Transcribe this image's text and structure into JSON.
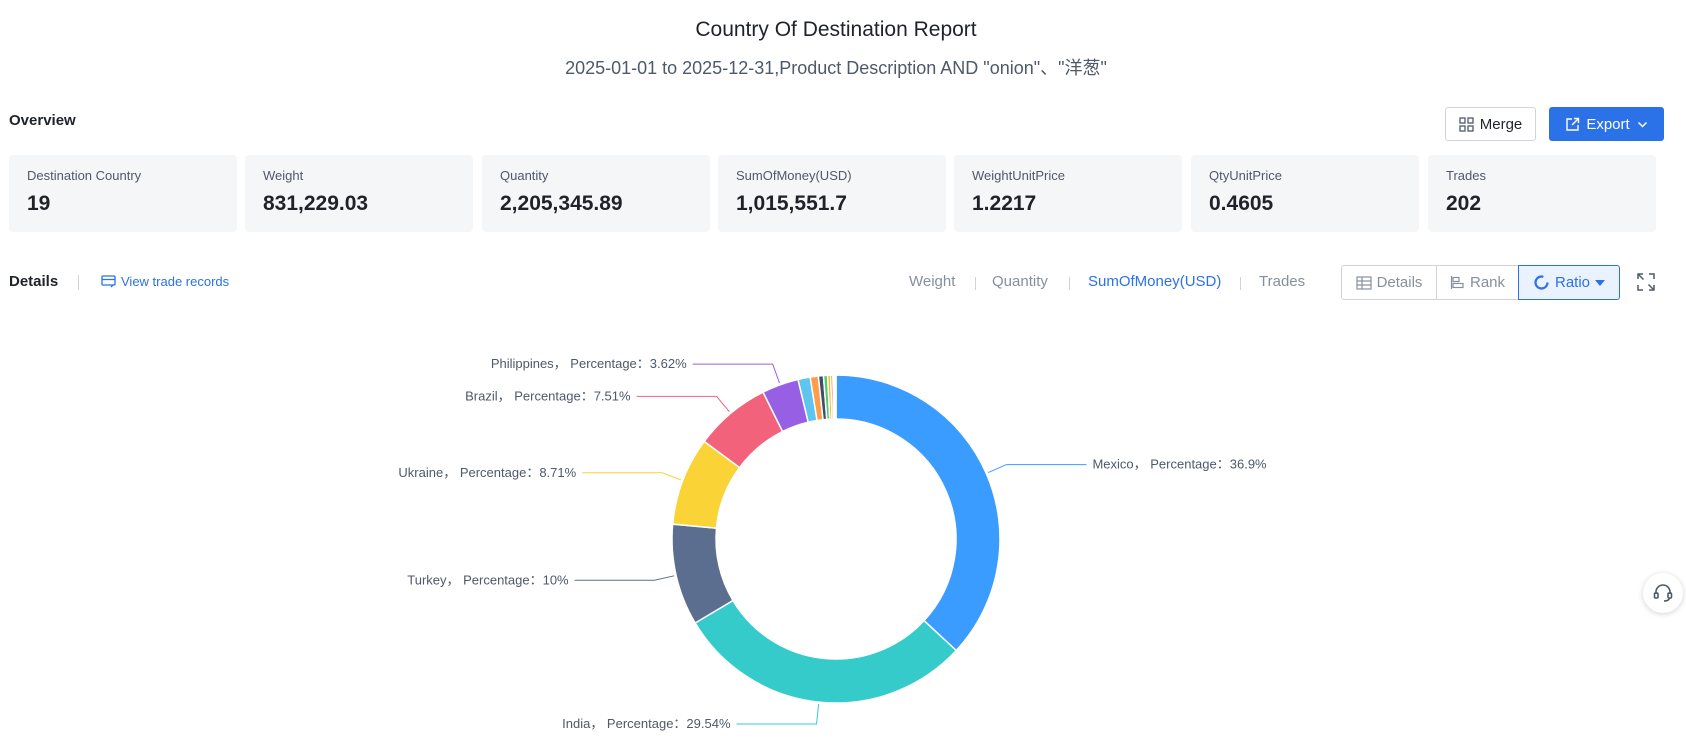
{
  "report": {
    "title": "Country Of Destination Report",
    "subtitle": "2025-01-01 to 2025-12-31,Product Description AND \"onion\"、\"洋葱\""
  },
  "overview": {
    "label": "Overview",
    "merge_label": "Merge",
    "export_label": "Export",
    "stats": [
      {
        "label": "Destination Country",
        "value": "19"
      },
      {
        "label": "Weight",
        "value": "831,229.03"
      },
      {
        "label": "Quantity",
        "value": "2,205,345.89"
      },
      {
        "label": "SumOfMoney(USD)",
        "value": "1,015,551.7"
      },
      {
        "label": "WeightUnitPrice",
        "value": "1.2217"
      },
      {
        "label": "QtyUnitPrice",
        "value": "0.4605"
      },
      {
        "label": "Trades",
        "value": "202"
      }
    ]
  },
  "details": {
    "label": "Details",
    "view_records_label": "View trade records",
    "metric_tabs": [
      "Weight",
      "Quantity",
      "SumOfMoney(USD)",
      "Trades"
    ],
    "active_metric": "SumOfMoney(USD)",
    "view_modes": [
      "Details",
      "Rank",
      "Ratio"
    ],
    "active_view": "Ratio"
  },
  "icons": {
    "merge": "grid-icon",
    "export": "export-icon",
    "view_records": "records-icon",
    "details_view": "table-icon",
    "rank_view": "bar-rank-icon",
    "ratio_view": "donut-icon",
    "fullscreen": "expand-icon",
    "support": "headset-icon"
  },
  "colors": {
    "accent": "#2b71e8",
    "card_bg": "#f5f6f8"
  },
  "chart_data": {
    "type": "pie",
    "variant": "donut",
    "label_format": "{name}， Percentage：{value}%",
    "series": [
      {
        "name": "Mexico",
        "value": 36.9,
        "color": "#3a9cff",
        "labeled": true
      },
      {
        "name": "India",
        "value": 29.54,
        "color": "#36cbcb",
        "labeled": true
      },
      {
        "name": "Turkey",
        "value": 10,
        "color": "#5b6e8f",
        "labeled": true
      },
      {
        "name": "Ukraine",
        "value": 8.71,
        "color": "#fad337",
        "labeled": true
      },
      {
        "name": "Brazil",
        "value": 7.51,
        "color": "#f2637b",
        "labeled": true
      },
      {
        "name": "Philippines",
        "value": 3.62,
        "color": "#975fe4",
        "labeled": true
      },
      {
        "name": "",
        "value": 1.2,
        "color": "#5ec4f0",
        "labeled": false
      },
      {
        "name": "",
        "value": 0.8,
        "color": "#ff9d4d",
        "labeled": false
      },
      {
        "name": "",
        "value": 0.5,
        "color": "#3f4f66",
        "labeled": false
      },
      {
        "name": "",
        "value": 0.4,
        "color": "#4fcb74",
        "labeled": false
      },
      {
        "name": "",
        "value": 0.3,
        "color": "#f6bd16",
        "labeled": false
      },
      {
        "name": "",
        "value": 0.22,
        "color": "#e86452",
        "labeled": false
      },
      {
        "name": "",
        "value": 0.15,
        "color": "#9ea6f7",
        "labeled": false
      },
      {
        "name": "",
        "value": 0.15,
        "color": "#ff99c3",
        "labeled": false
      }
    ]
  }
}
